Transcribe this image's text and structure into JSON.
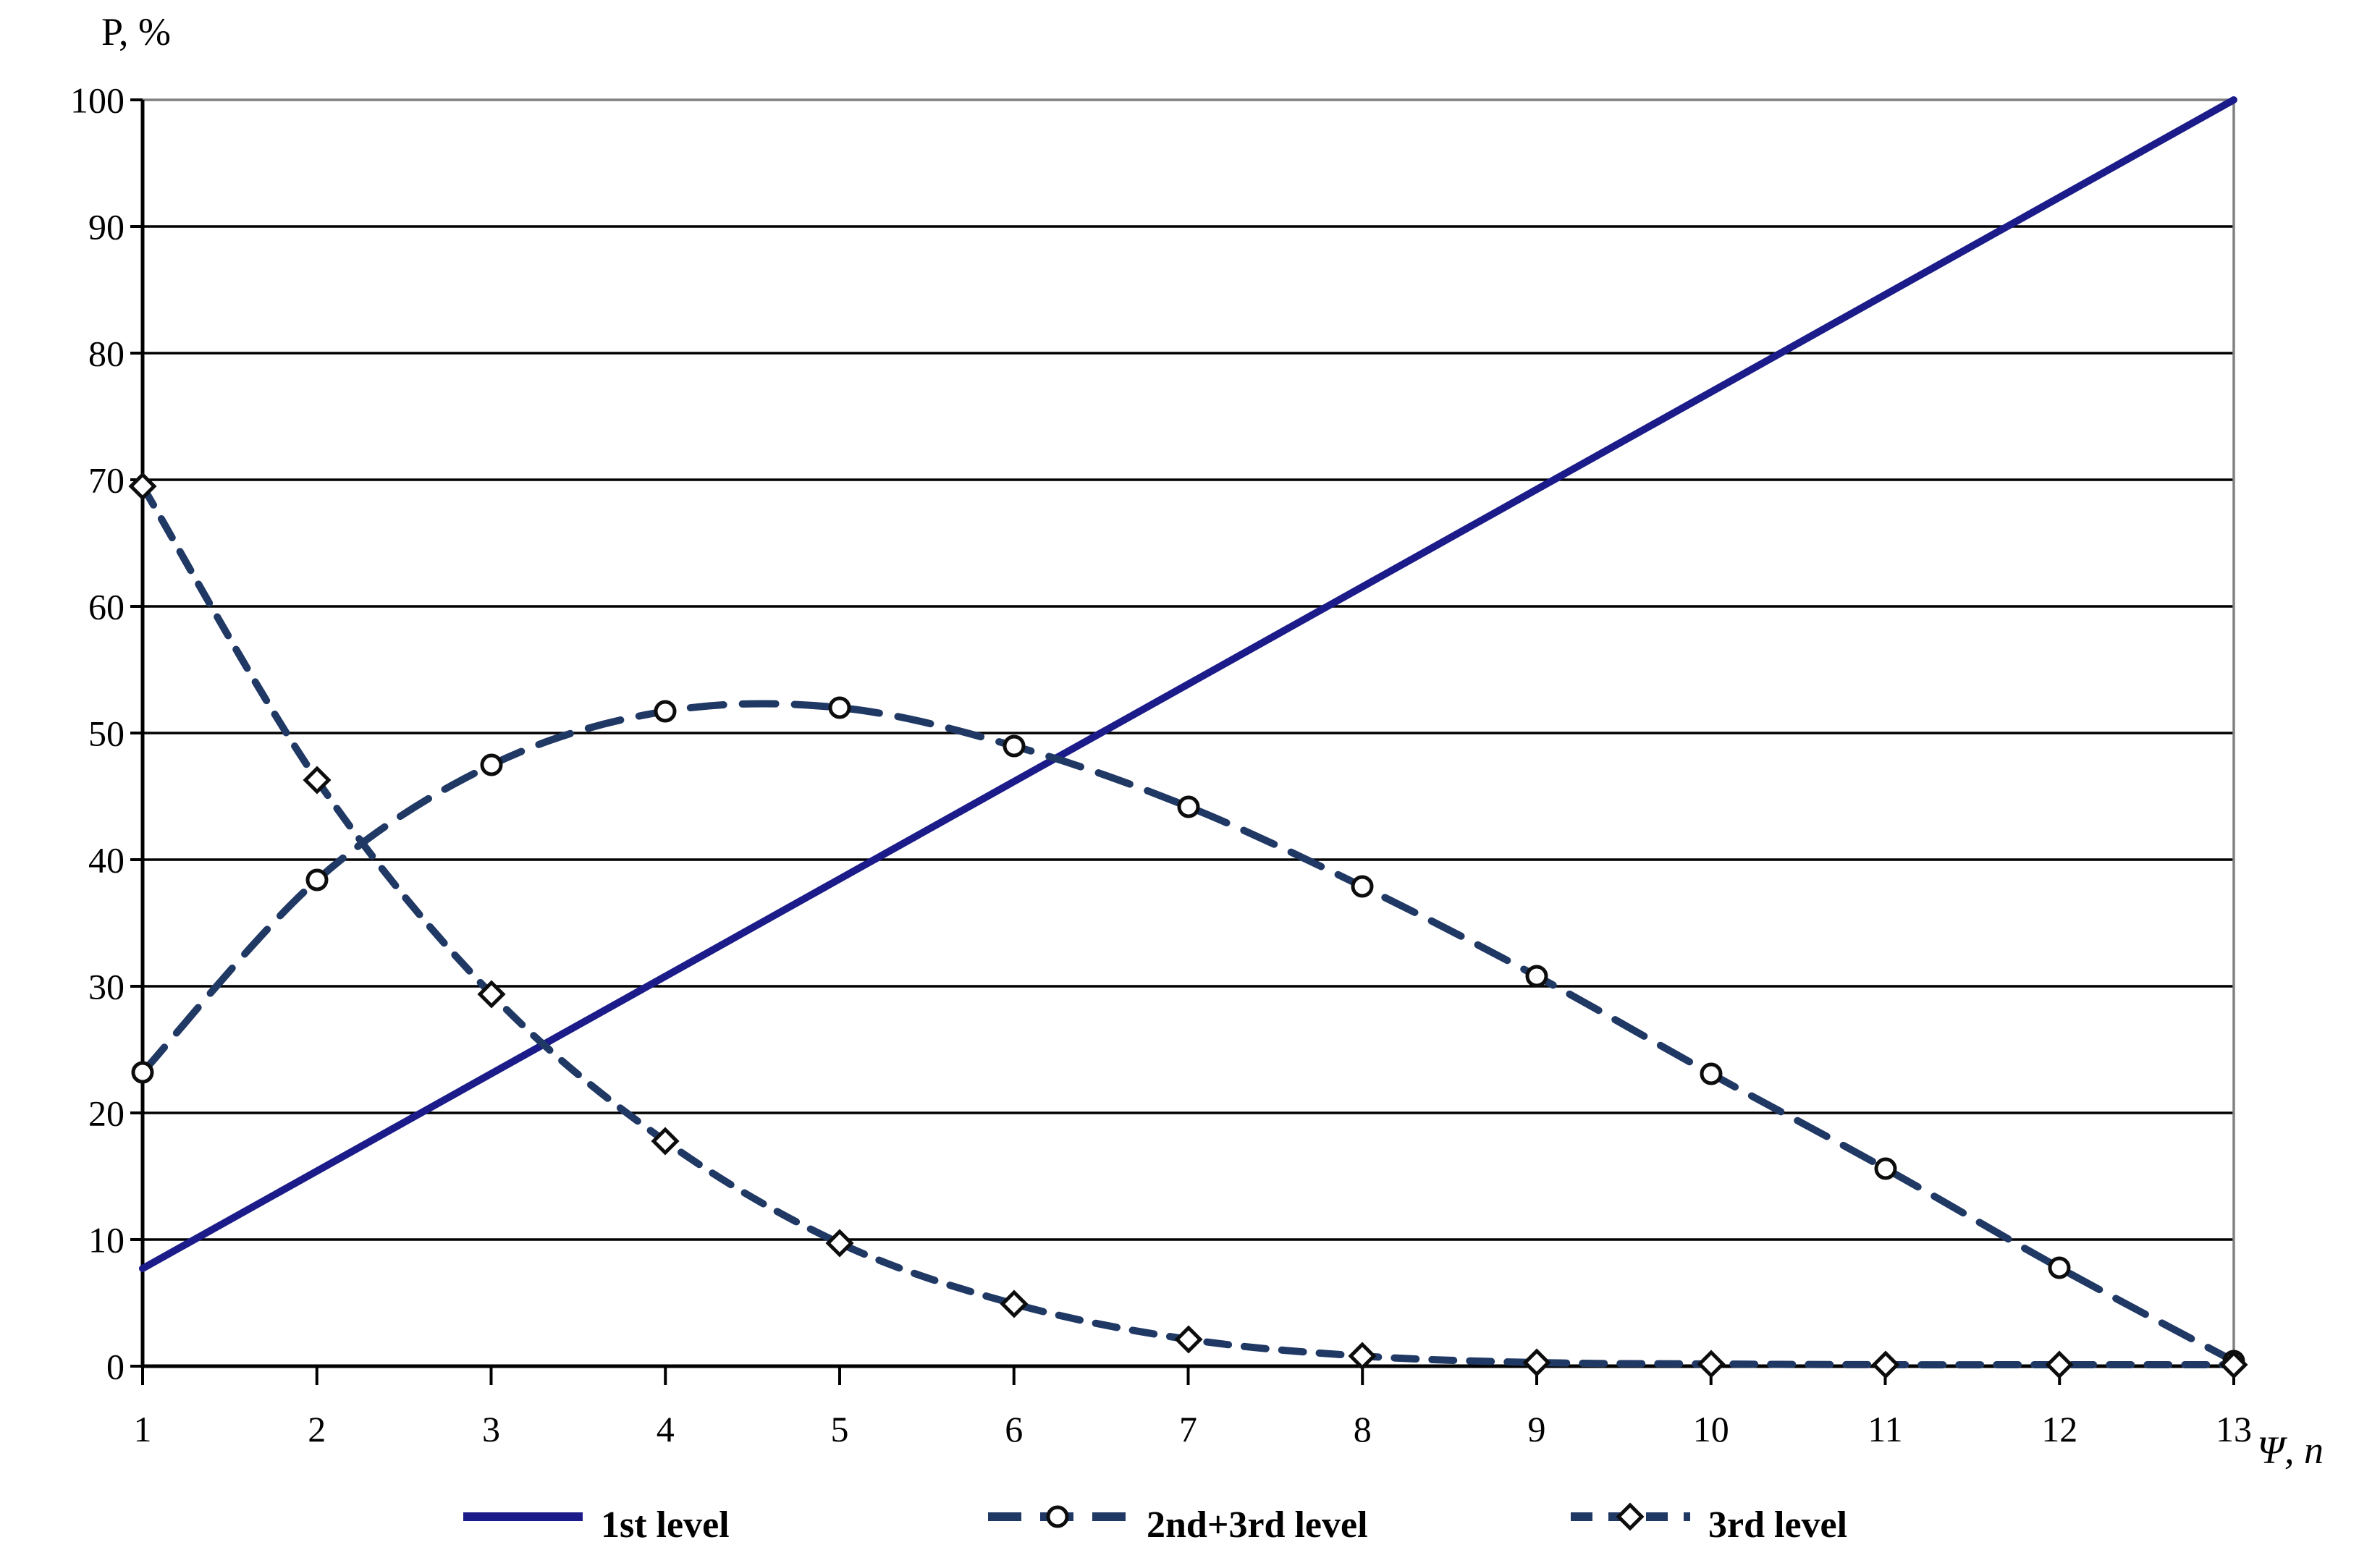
{
  "figure": {
    "kind": "line-chart",
    "background": "#ffffff"
  },
  "chart_data": {
    "type": "line",
    "title": "",
    "xlabel": "Ψ, n",
    "ylabel": "P, %",
    "x": [
      1,
      2,
      3,
      4,
      5,
      6,
      7,
      8,
      9,
      10,
      11,
      12,
      13
    ],
    "xlim": [
      1,
      13
    ],
    "ylim": [
      0,
      100
    ],
    "ytick_step": 10,
    "ytick_labels": [
      "0",
      "10",
      "20",
      "30",
      "40",
      "50",
      "60",
      "70",
      "80",
      "90",
      "100"
    ],
    "xtick_labels": [
      "1",
      "2",
      "3",
      "4",
      "5",
      "6",
      "7",
      "8",
      "9",
      "10",
      "11",
      "12",
      "13"
    ],
    "grid": "horizontal",
    "legend_position": "bottom-center",
    "series": [
      {
        "name": "1st level",
        "line_style": "solid",
        "marker": "none",
        "color": "#1b1b8a",
        "values": [
          7.7,
          15.4,
          23.1,
          30.8,
          38.5,
          46.2,
          53.8,
          61.5,
          69.2,
          76.9,
          84.6,
          92.3,
          100
        ]
      },
      {
        "name": "2nd+3rd level",
        "line_style": "long-dash",
        "marker": "circle",
        "color": "#1f3864",
        "values": [
          23.2,
          38.4,
          47.5,
          51.7,
          52.0,
          49.0,
          44.2,
          37.9,
          30.8,
          23.1,
          15.6,
          7.8,
          0.4
        ]
      },
      {
        "name": "3rd level",
        "line_style": "short-dash",
        "marker": "diamond",
        "color": "#1f3864",
        "values": [
          69.5,
          46.3,
          29.4,
          17.8,
          9.7,
          4.9,
          2.1,
          0.8,
          0.3,
          0.2,
          0.1,
          0.1,
          0.1
        ]
      }
    ]
  },
  "colors": {
    "grid_line": "#000000",
    "top_border": "#808080",
    "right_border": "#808080",
    "axis": "#000000",
    "marker_fill": "#ffffff",
    "marker_stroke": "#0d0d0d"
  }
}
